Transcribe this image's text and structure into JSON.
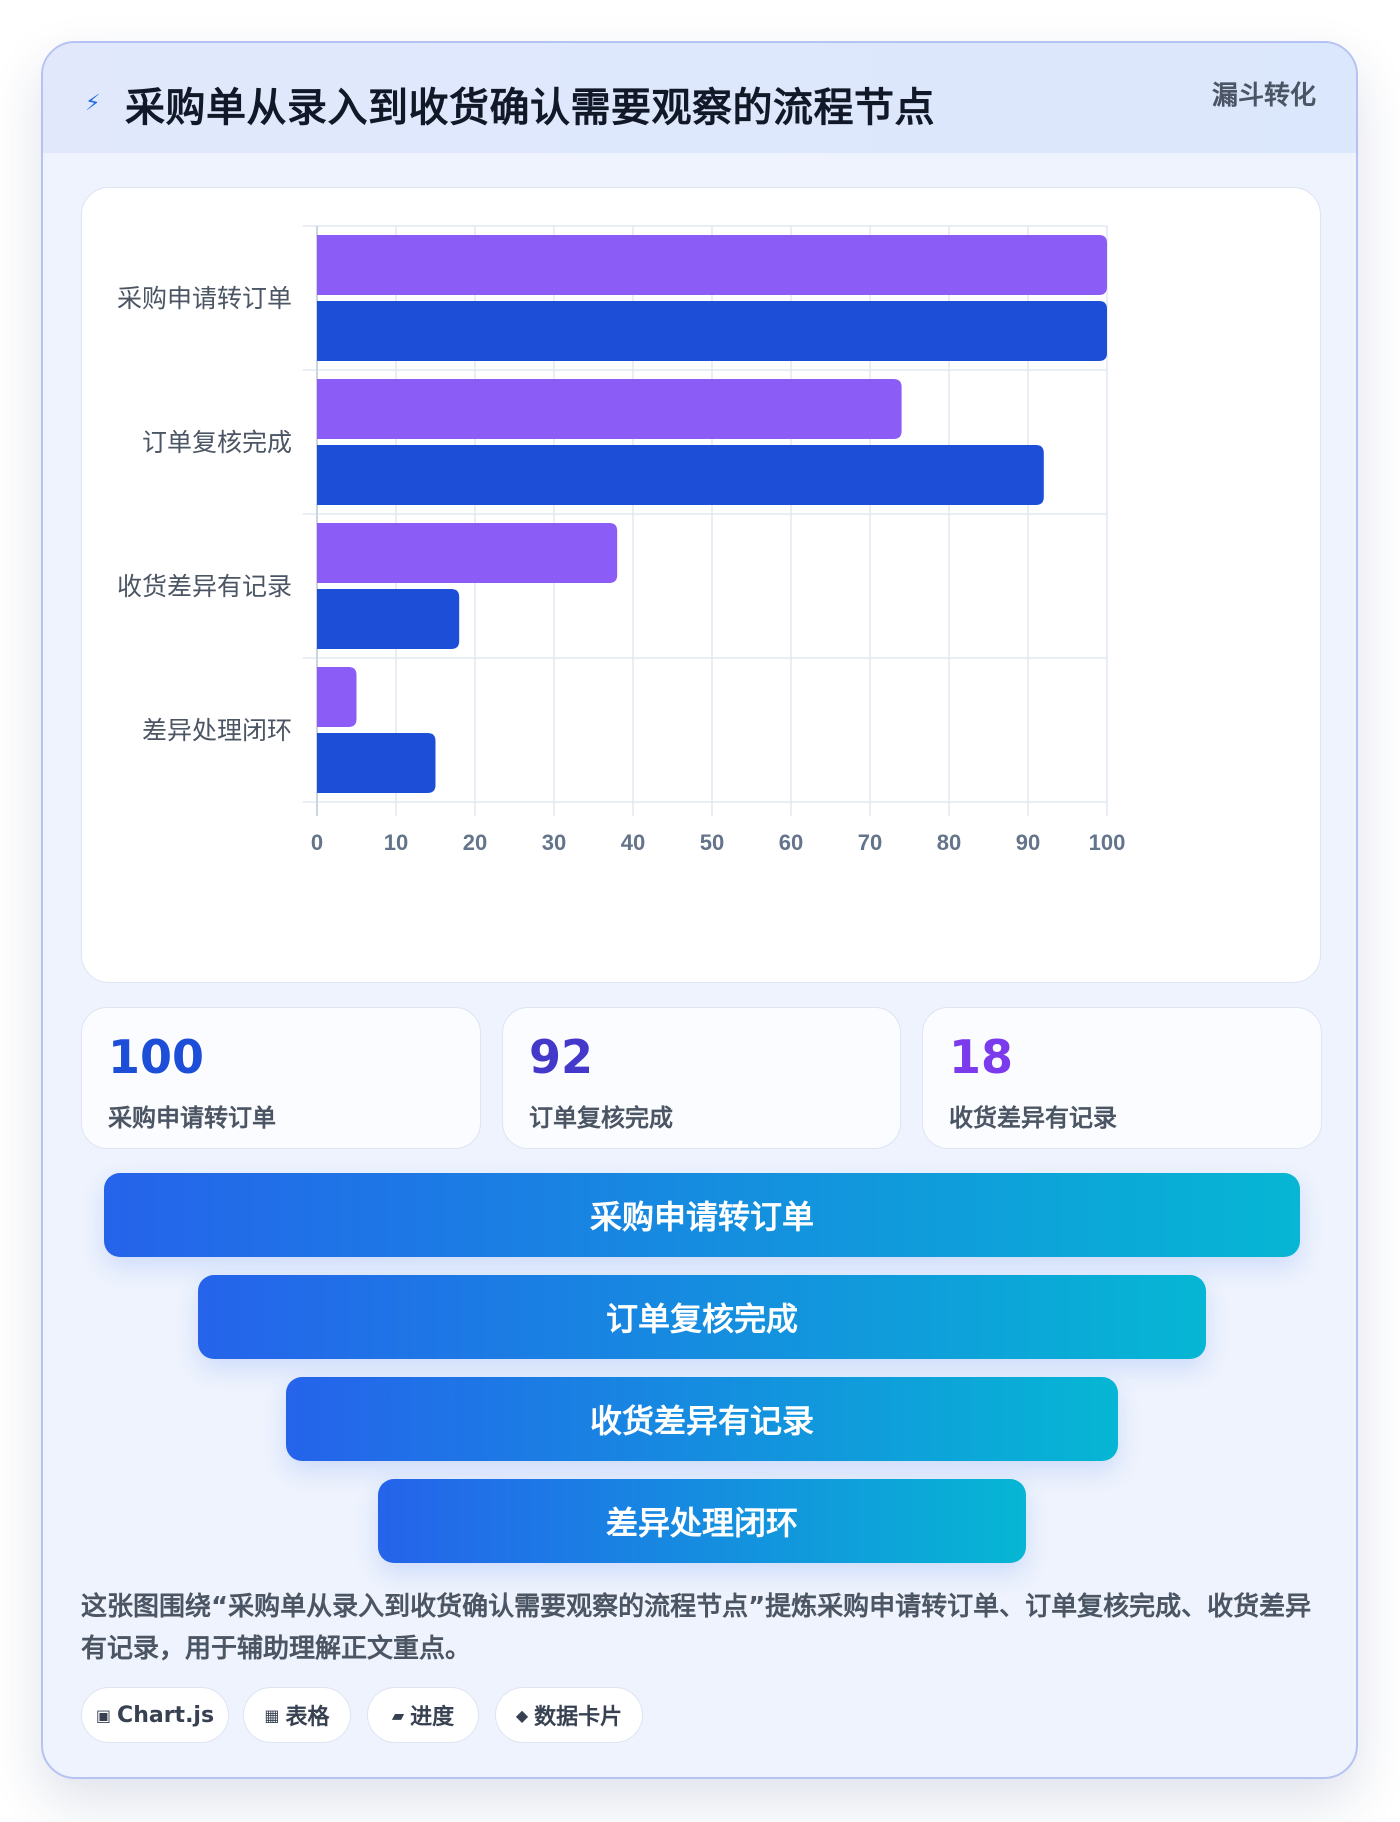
{
  "header": {
    "icon": "lightning-icon",
    "title": "采购单从录入到收货确认需要观察的流程节点",
    "tag": "漏斗转化"
  },
  "chart_data": {
    "type": "bar",
    "orientation": "horizontal",
    "categories": [
      "采购申请转订单",
      "订单复核完成",
      "收货差异有记录",
      "差异处理闭环"
    ],
    "series": [
      {
        "values": [
          100,
          74,
          38,
          5
        ],
        "color": "#8b5cf6"
      },
      {
        "values": [
          100,
          92,
          18,
          15
        ],
        "color": "#1d4ed8"
      }
    ],
    "xlim": [
      0,
      100
    ],
    "xticks": [
      0,
      10,
      20,
      30,
      40,
      50,
      60,
      70,
      80,
      90,
      100
    ],
    "grid": true,
    "legend": "none"
  },
  "stats": [
    {
      "value": "100",
      "label": "采购申请转订单",
      "color": "#1d4ed8"
    },
    {
      "value": "92",
      "label": "订单复核完成",
      "color": "#4338ca"
    },
    {
      "value": "18",
      "label": "收货差异有记录",
      "color": "#7c3aed"
    }
  ],
  "funnel": [
    {
      "label": "采购申请转订单"
    },
    {
      "label": "订单复核完成"
    },
    {
      "label": "收货差异有记录"
    },
    {
      "label": "差异处理闭环"
    }
  ],
  "description": "这张图围绕“采购单从录入到收货确认需要观察的流程节点”提炼采购申请转订单、订单复核完成、收货差异有记录，用于辅助理解正文重点。",
  "chips": [
    {
      "icon": "▣",
      "label": "Chart.js"
    },
    {
      "icon": "▦",
      "label": "表格"
    },
    {
      "icon": "▰",
      "label": "进度"
    },
    {
      "icon": "◆",
      "label": "数据卡片"
    }
  ]
}
